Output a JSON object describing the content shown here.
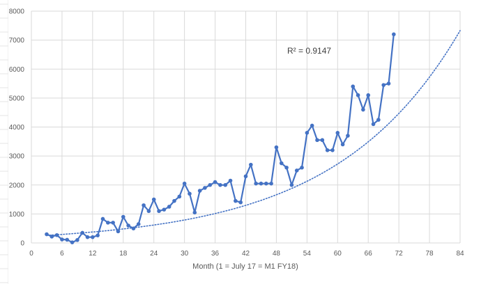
{
  "colors": {
    "series": "#4472c4",
    "trend": "#4472c4",
    "grid": "#d9d9d9",
    "axis_text": "#595959",
    "sheet_grid": "#e6e6e6"
  },
  "chart_data": {
    "type": "line",
    "title": "",
    "xlabel": "Month (1 = July 17 = M1 FY18)",
    "ylabel": "",
    "xlim": [
      0,
      84
    ],
    "ylim": [
      0,
      8000
    ],
    "x_ticks": [
      0,
      6,
      12,
      18,
      24,
      30,
      36,
      42,
      48,
      54,
      60,
      66,
      72,
      78,
      84
    ],
    "y_ticks": [
      0,
      1000,
      2000,
      3000,
      4000,
      5000,
      6000,
      7000,
      8000
    ],
    "grid": true,
    "legend": "none",
    "annotation": "R² = 0.9147",
    "trendline": {
      "type": "exponential",
      "x_start": 3,
      "x_end": 84,
      "y_start": 260,
      "y_end": 7330
    },
    "series": [
      {
        "x": [
          3,
          4,
          5,
          6,
          7,
          8,
          9,
          10,
          11,
          12,
          13,
          14,
          15,
          16,
          17,
          18,
          19,
          20,
          21,
          22,
          23,
          24,
          25,
          26,
          27,
          28,
          29,
          30,
          31,
          32,
          33,
          34,
          35,
          36,
          37,
          38,
          39,
          40,
          41,
          42,
          43,
          44,
          45,
          46,
          47,
          48,
          49,
          50,
          51,
          52,
          53,
          54,
          55,
          56,
          57,
          58,
          59,
          60,
          61,
          62,
          63,
          64,
          65,
          66,
          67,
          68,
          69,
          70,
          71
        ],
        "values": [
          300,
          220,
          270,
          120,
          110,
          20,
          100,
          350,
          200,
          200,
          260,
          830,
          700,
          700,
          400,
          900,
          600,
          500,
          650,
          1300,
          1100,
          1500,
          1100,
          1150,
          1250,
          1450,
          1600,
          2050,
          1700,
          1050,
          1800,
          1900,
          2000,
          2100,
          2000,
          2000,
          2150,
          1450,
          1400,
          2300,
          2700,
          2050,
          2050,
          2050,
          2050,
          3300,
          2750,
          2600,
          2000,
          2500,
          2600,
          3800,
          4050,
          3550,
          3550,
          3200,
          3200,
          3800,
          3400,
          3700,
          5400,
          5100,
          4600,
          5100,
          4100,
          4250,
          5450,
          5500,
          7200
        ]
      }
    ]
  }
}
